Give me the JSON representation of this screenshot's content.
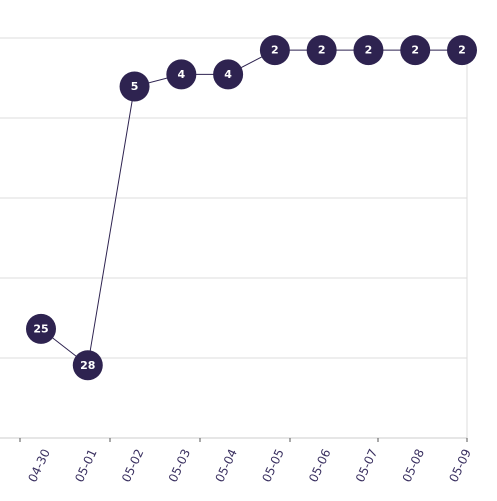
{
  "chart_data": {
    "type": "line",
    "categories": [
      "04-30",
      "05-01",
      "05-02",
      "05-03",
      "05-04",
      "05-05",
      "05-06",
      "05-07",
      "05-08",
      "05-09"
    ],
    "values": [
      25,
      28,
      5,
      4,
      4,
      2,
      2,
      2,
      2,
      2
    ],
    "color": "#2e2350",
    "ylim": [
      34,
      1
    ],
    "ygrid": [
      1,
      7.6,
      14.2,
      20.8,
      27.4,
      34
    ],
    "grid": true
  }
}
